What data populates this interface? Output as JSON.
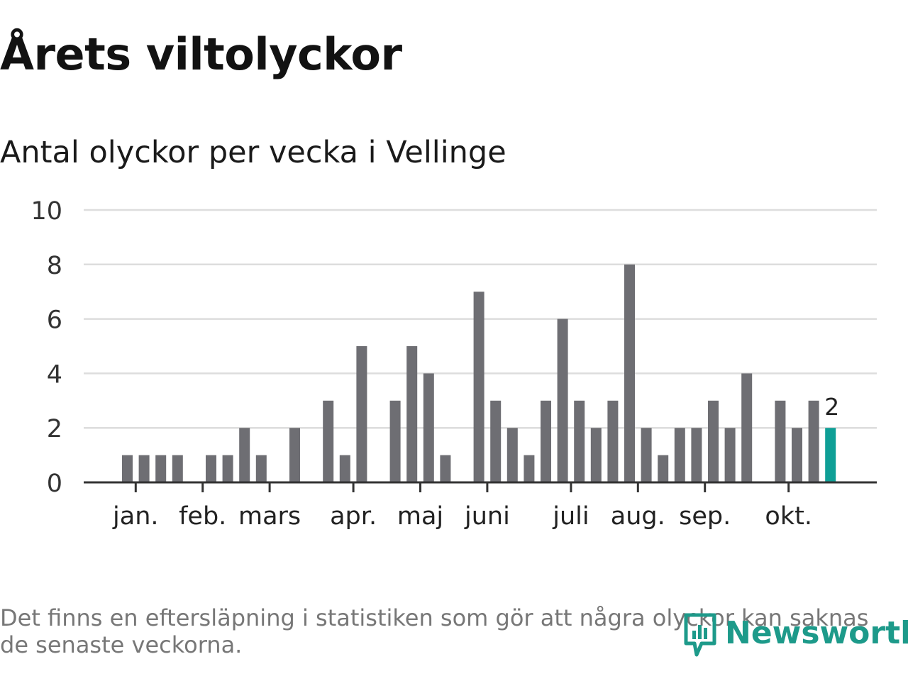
{
  "title": "Årets viltolyckor",
  "subtitle": "Antal olyckor per vecka i Vellinge",
  "footnote": "Det finns en eftersläpning i statistiken som gör att några olyckor kan saknas de senaste veckorna.",
  "brand": {
    "name": "Newsworthy",
    "icon": "newsworthy-logo-icon",
    "color": "#1d9a8a"
  },
  "colors": {
    "bar": "#6e6e73",
    "highlight": "#0f9f96",
    "grid": "#dddddd",
    "axis": "#333333"
  },
  "chart_data": {
    "type": "bar",
    "title": "Antal olyckor per vecka i Vellinge",
    "xlabel": "",
    "ylabel": "",
    "ylim": [
      0,
      10
    ],
    "yticks": [
      0,
      2,
      4,
      6,
      8,
      10
    ],
    "grid": true,
    "weeks": [
      1,
      2,
      3,
      4,
      5,
      6,
      7,
      8,
      9,
      10,
      11,
      12,
      13,
      14,
      15,
      16,
      17,
      18,
      19,
      20,
      21,
      22,
      23,
      24,
      25,
      26,
      27,
      28,
      29,
      30,
      31,
      32,
      33,
      34,
      35,
      36,
      37,
      38,
      39,
      40,
      41,
      42,
      43
    ],
    "values": [
      1,
      1,
      1,
      1,
      0,
      1,
      1,
      2,
      1,
      0,
      2,
      0,
      3,
      1,
      5,
      0,
      3,
      5,
      4,
      1,
      0,
      7,
      3,
      2,
      1,
      3,
      6,
      3,
      2,
      3,
      8,
      2,
      1,
      2,
      2,
      3,
      2,
      4,
      0,
      3,
      2,
      3,
      2
    ],
    "highlight_index": 42,
    "highlight_label": "2",
    "month_labels": [
      {
        "label": "jan.",
        "week": 1.5
      },
      {
        "label": "feb.",
        "week": 5.5
      },
      {
        "label": "mars",
        "week": 9.5
      },
      {
        "label": "apr.",
        "week": 14.5
      },
      {
        "label": "maj",
        "week": 18.5
      },
      {
        "label": "juni",
        "week": 22.5
      },
      {
        "label": "juli",
        "week": 27.5
      },
      {
        "label": "aug.",
        "week": 31.5
      },
      {
        "label": "sep.",
        "week": 35.5
      },
      {
        "label": "okt.",
        "week": 40.5
      }
    ]
  }
}
